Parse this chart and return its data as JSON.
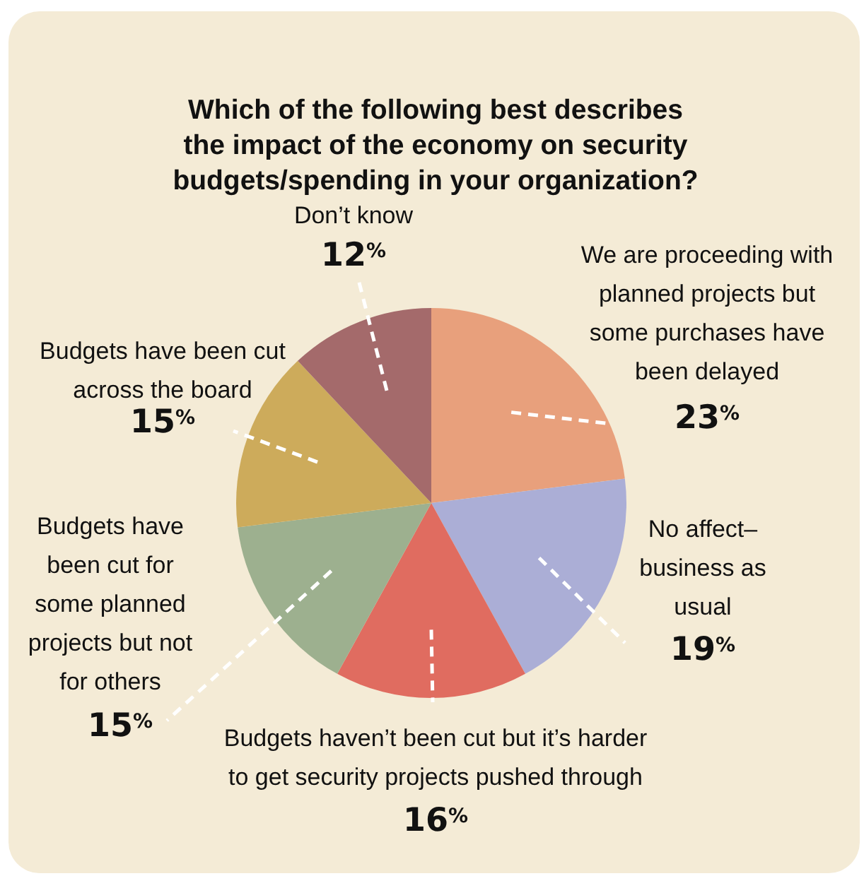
{
  "chart_data": {
    "type": "pie",
    "title": "Which of the following best describes the impact of the economy on security budgets/spending in your organization?",
    "categories": [
      "We are proceeding with planned projects but some purchases have been delayed",
      "No affect–business as usual",
      "Budgets haven’t been cut but it’s harder to get security projects pushed through",
      "Budgets have been cut for some planned projects but not for others",
      "Budgets have been cut across the board",
      "Don’t know"
    ],
    "values": [
      23,
      19,
      16,
      15,
      15,
      12
    ],
    "value_labels": [
      "23$^{%}$",
      "19$^{%}$",
      "16$^{%}$",
      "15$^{%}$",
      "15$^{%}$",
      "12$^{%}$"
    ],
    "colors": [
      "#e8a07c",
      "#abaed6",
      "#e06c60",
      "#9db08f",
      "#cdab5b",
      "#a46a6b"
    ]
  }
}
